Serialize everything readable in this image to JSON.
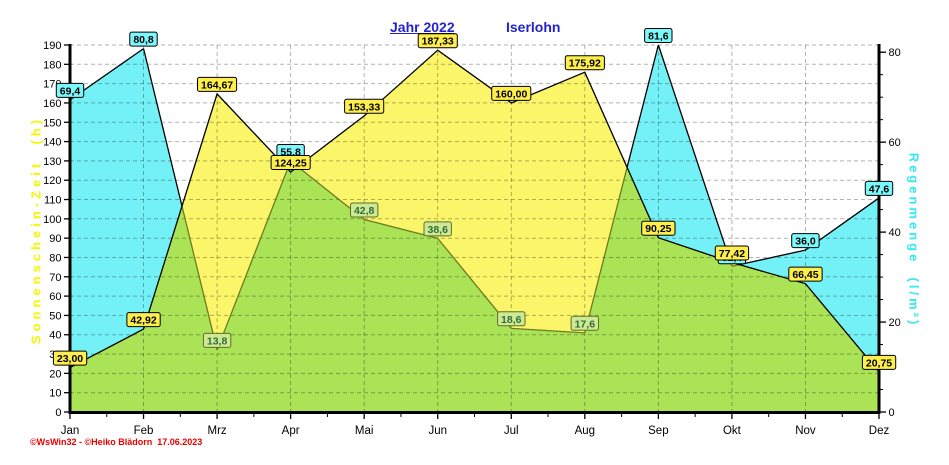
{
  "title": {
    "left": "Jahr 2022",
    "right": "Iserlohn",
    "color": "#2323cd"
  },
  "footer": {
    "credit": "©WsWin32 - ©Heiko Blädorn  17.06.2023",
    "color": "#ea0000"
  },
  "chart_data": {
    "type": "area",
    "categories": [
      "Jan",
      "Feb",
      "Mrz",
      "Apr",
      "Mai",
      "Jun",
      "Jul",
      "Aug",
      "Sep",
      "Okt",
      "Nov",
      "Dez"
    ],
    "left_axis": {
      "title": "Sonnenschein-Zeit  (h)",
      "title_color": "#f6f600",
      "min": 0,
      "max": 190,
      "tick_step": 10
    },
    "right_axis": {
      "title": "Regenmenge  (l/m²)",
      "title_color": "#35e9f3",
      "min": 0,
      "max": 81.6,
      "label_step": 20,
      "minor_tick_step": 5
    },
    "grid": {
      "show": true,
      "color": "#000000",
      "opacity": 0.3
    },
    "overlap_fill": "#abe356",
    "series": [
      {
        "name": "Regenmenge",
        "unit": "l/m²",
        "axis": "right",
        "fill": "#74f1f6",
        "line": "#000000",
        "line_under_overlap": "#6e7a23",
        "label_bg": "#7df8fa",
        "label_fg": "#000000",
        "label_border": "#000000",
        "label_bg_tinted": "#cfe993",
        "label_fg_tinted": "#2f6b3f",
        "label_border_tinted": "#5a702a",
        "values": [
          69.4,
          80.8,
          13.8,
          55.8,
          42.8,
          38.6,
          18.6,
          17.6,
          81.6,
          32.4,
          36.0,
          47.6
        ],
        "labels": [
          "69,4",
          "80,8",
          "13,8",
          "55,8",
          "42,8",
          "38,6",
          "18,6",
          "17,6",
          "81,6",
          "32,4",
          "36,0",
          "47,6"
        ],
        "tinted": [
          false,
          false,
          true,
          false,
          true,
          true,
          true,
          true,
          false,
          false,
          false,
          false
        ]
      },
      {
        "name": "Sonnenschein-Zeit",
        "unit": "h",
        "axis": "left",
        "fill": "#fbf669",
        "line": "#000000",
        "label_bg": "#ffef4d",
        "label_fg": "#000000",
        "label_border": "#000000",
        "values": [
          23.0,
          42.92,
          164.67,
          124.25,
          153.33,
          187.33,
          160.0,
          175.92,
          90.25,
          77.42,
          66.45,
          20.75
        ],
        "labels": [
          "23,00",
          "42,92",
          "164,67",
          "124,25",
          "153,33",
          "187,33",
          "160,00",
          "175,92",
          "90,25",
          "77,42",
          "66,45",
          "20,75"
        ]
      }
    ]
  }
}
